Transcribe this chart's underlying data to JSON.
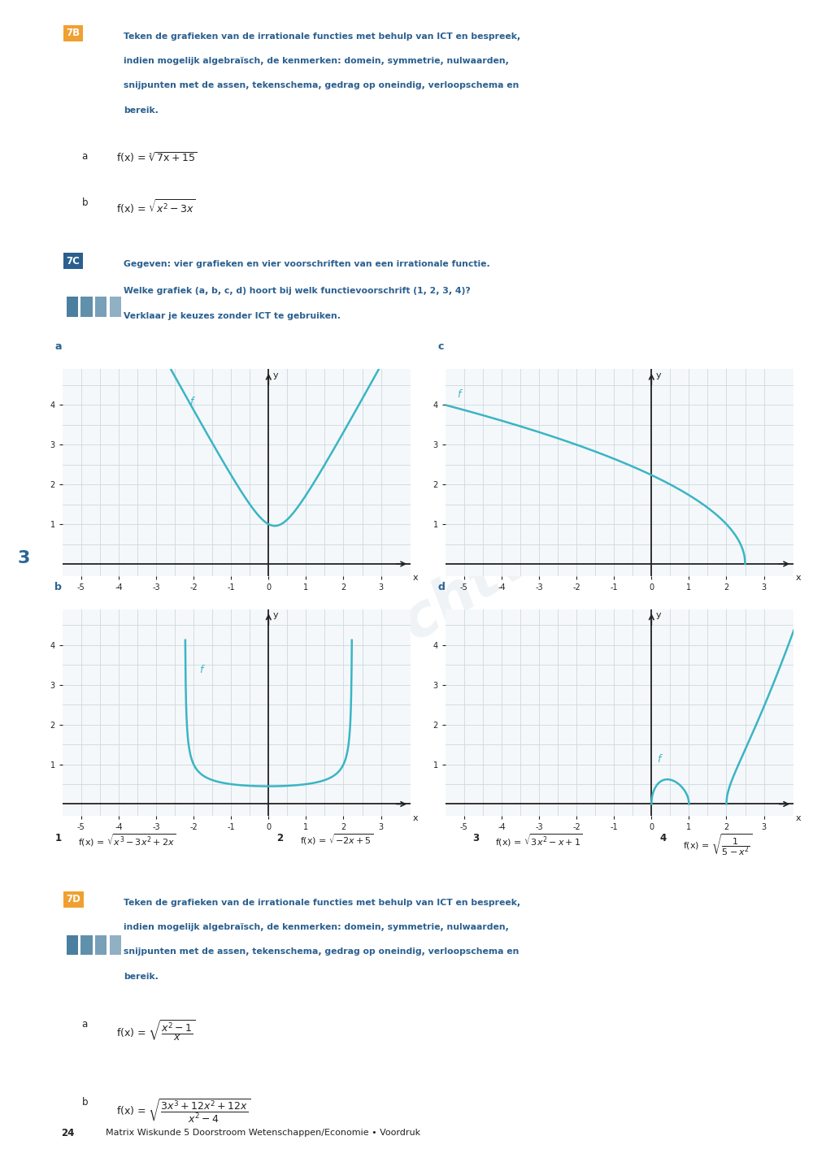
{
  "page_bg": "#ffffff",
  "sidebar_color": "#c5daea",
  "sidebar_number": "3",
  "sidebar_number_color": "#2a6496",
  "orange_badge_color": "#f0a030",
  "blue_badge_color": "#2a5f8f",
  "curve_color": "#3ab5c5",
  "grid_color": "#ccd8e0",
  "axis_color": "#222222",
  "label_color": "#2a6496",
  "text_color": "#222222",
  "heading_color": "#2a5f8f",
  "watermark_color": "#c0cfd8",
  "bottom_bar_color": "#ddeaf4",
  "bottom_text": "Matrix Wiskunde 5 Doorstroom Wetenschappen/Economie • Voordruk",
  "page_number": "24",
  "badge_7B": "7B",
  "badge_7C": "7C",
  "badge_7D": "7D",
  "text_7B_lines": [
    "Teken de grafieken van de irrationale functies met behulp van ICT en bespreek,",
    "indien mogelijk algebraïsch, de kenmerken: domein, symmetrie, nulwaarden,",
    "snijpunten met de assen, tekenschema, gedrag op oneindig, verloopschema en",
    "bereik."
  ],
  "text_7C_bold": "Gegeven: vier grafieken en vier voorschriften van een irrationale functie.",
  "text_7C_lines": [
    "Welke grafiek (a, b, c, d) hoort bij welk functievoorschrift (1, 2, 3, 4)?",
    "Verklaar je keuzes zonder ICT te gebruiken."
  ],
  "text_7D_lines": [
    "Teken de grafieken van de irrationale functies met behulp van ICT en bespreek,",
    "indien mogelijk algebraïsch, de kenmerken: domein, symmetrie, nulwaarden,",
    "snijpunten met de assen, tekenschema, gedrag op oneindig, verloopschema en",
    "bereik."
  ],
  "xlim": [
    -5.5,
    3.8
  ],
  "ylim": [
    -0.3,
    4.9
  ],
  "xticks": [
    -5,
    -4,
    -3,
    -2,
    -1,
    0,
    1,
    2,
    3
  ],
  "yticks": [
    1,
    2,
    3,
    4
  ]
}
